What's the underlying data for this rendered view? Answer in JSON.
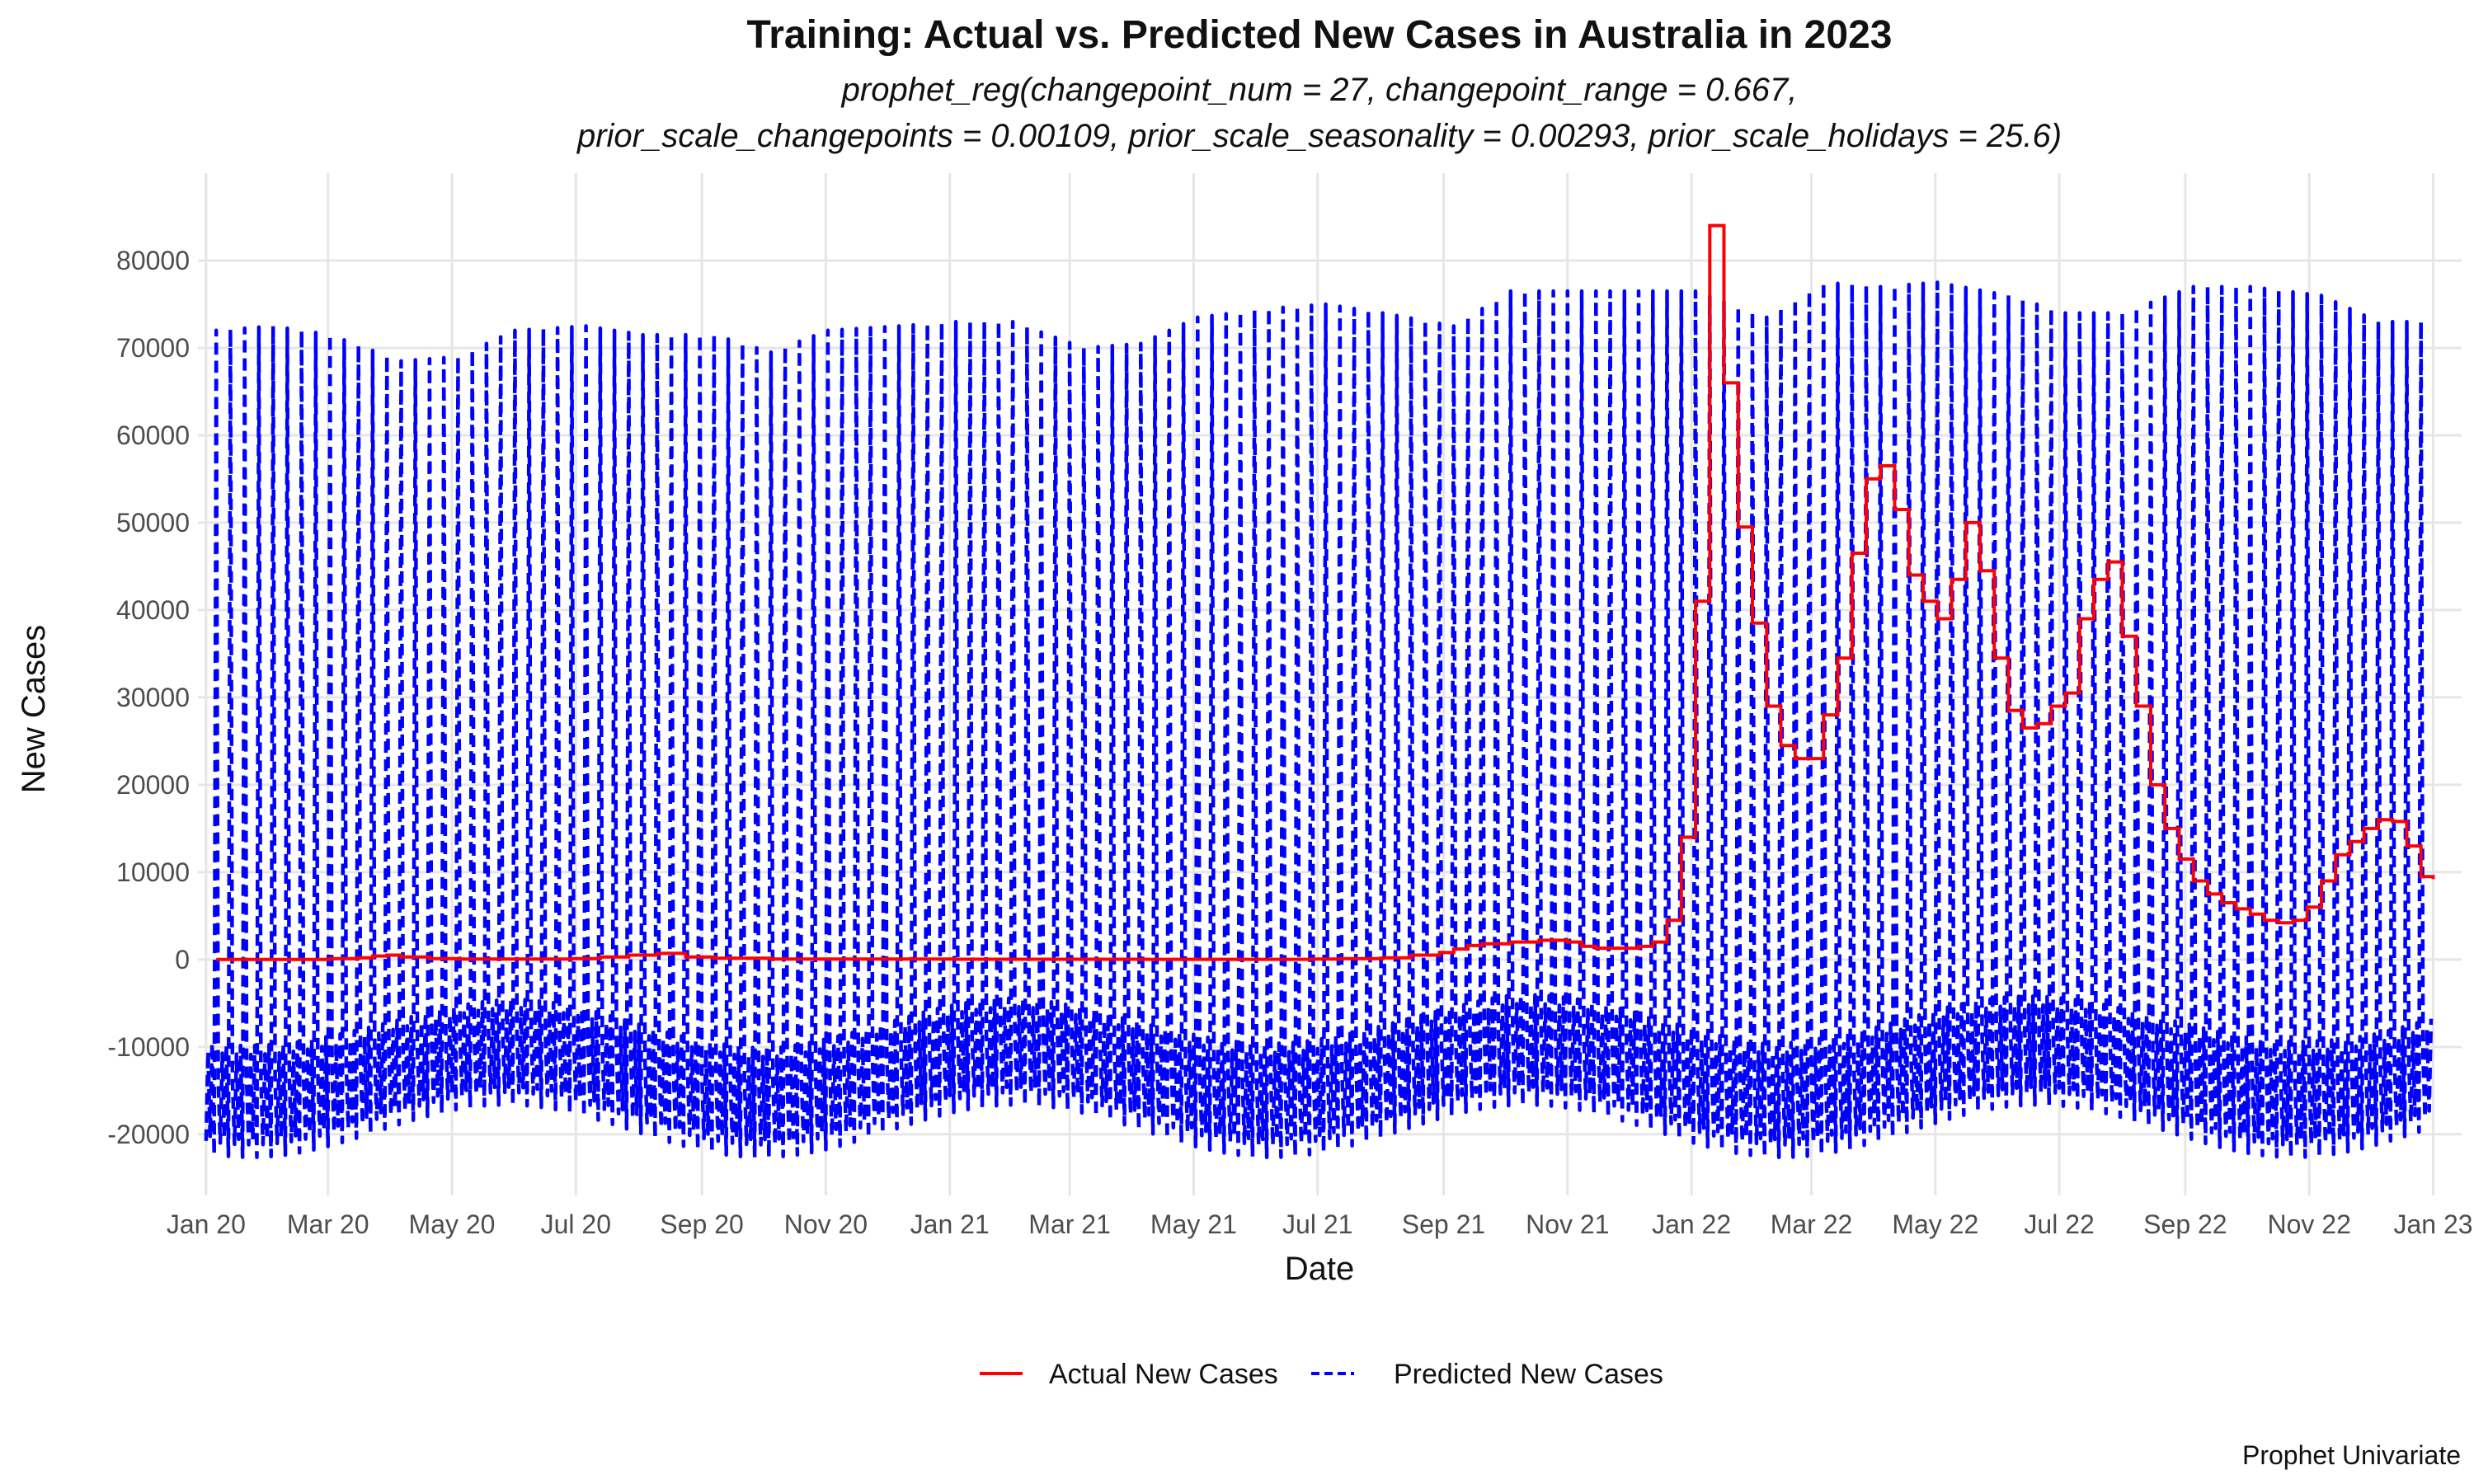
{
  "chart_data": {
    "type": "line",
    "title": "Training: Actual vs. Predicted New Cases in Australia in 2023",
    "subtitle_lines": [
      "prophet_reg(changepoint_num = 27, changepoint_range = 0.667,",
      "prior_scale_changepoints = 0.00109, prior_scale_seasonality = 0.00293, prior_scale_holidays = 25.6)"
    ],
    "xlabel": "Date",
    "ylabel": "New Cases",
    "caption": "Prophet Univariate",
    "xlim": [
      "2019-12-28",
      "2023-01-15"
    ],
    "ylim": [
      -27000,
      90000
    ],
    "x_ticks": [
      {
        "date": "2020-01-01",
        "label": "Jan 20"
      },
      {
        "date": "2020-03-01",
        "label": "Mar 20"
      },
      {
        "date": "2020-05-01",
        "label": "May 20"
      },
      {
        "date": "2020-07-01",
        "label": "Jul 20"
      },
      {
        "date": "2020-09-01",
        "label": "Sep 20"
      },
      {
        "date": "2020-11-01",
        "label": "Nov 20"
      },
      {
        "date": "2021-01-01",
        "label": "Jan 21"
      },
      {
        "date": "2021-03-01",
        "label": "Mar 21"
      },
      {
        "date": "2021-05-01",
        "label": "May 21"
      },
      {
        "date": "2021-07-01",
        "label": "Jul 21"
      },
      {
        "date": "2021-09-01",
        "label": "Sep 21"
      },
      {
        "date": "2021-11-01",
        "label": "Nov 21"
      },
      {
        "date": "2022-01-01",
        "label": "Jan 22"
      },
      {
        "date": "2022-03-01",
        "label": "Mar 22"
      },
      {
        "date": "2022-05-01",
        "label": "May 22"
      },
      {
        "date": "2022-07-01",
        "label": "Jul 22"
      },
      {
        "date": "2022-09-01",
        "label": "Sep 22"
      },
      {
        "date": "2022-11-01",
        "label": "Nov 22"
      },
      {
        "date": "2023-01-01",
        "label": "Jan 23"
      }
    ],
    "y_ticks": [
      -20000,
      -10000,
      0,
      10000,
      20000,
      30000,
      40000,
      50000,
      60000,
      70000,
      80000
    ],
    "y_tick_labels": [
      "-20000",
      "-10000",
      "0",
      "10000",
      "20000",
      "30000",
      "40000",
      "50000",
      "60000",
      "70000",
      "80000"
    ],
    "grid": true,
    "legend_position": "bottom",
    "series": [
      {
        "name": "Actual New Cases",
        "color": "#ff0000",
        "dash": "solid",
        "step": true,
        "points": [
          [
            "2020-01-06",
            0
          ],
          [
            "2020-02-03",
            0
          ],
          [
            "2020-03-02",
            100
          ],
          [
            "2020-03-16",
            200
          ],
          [
            "2020-03-23",
            400
          ],
          [
            "2020-03-30",
            500
          ],
          [
            "2020-04-06",
            300
          ],
          [
            "2020-04-20",
            100
          ],
          [
            "2020-05-04",
            50
          ],
          [
            "2020-06-01",
            50
          ],
          [
            "2020-06-29",
            100
          ],
          [
            "2020-07-13",
            300
          ],
          [
            "2020-07-27",
            500
          ],
          [
            "2020-08-10",
            700
          ],
          [
            "2020-08-24",
            300
          ],
          [
            "2020-09-07",
            150
          ],
          [
            "2020-10-05",
            50
          ],
          [
            "2021-01-04",
            30
          ],
          [
            "2021-04-05",
            20
          ],
          [
            "2021-06-28",
            50
          ],
          [
            "2021-07-12",
            100
          ],
          [
            "2021-08-02",
            200
          ],
          [
            "2021-08-16",
            500
          ],
          [
            "2021-08-30",
            800
          ],
          [
            "2021-09-06",
            1200
          ],
          [
            "2021-09-13",
            1600
          ],
          [
            "2021-09-20",
            1800
          ],
          [
            "2021-10-04",
            2000
          ],
          [
            "2021-10-18",
            2200
          ],
          [
            "2021-11-01",
            2000
          ],
          [
            "2021-11-08",
            1500
          ],
          [
            "2021-11-15",
            1300
          ],
          [
            "2021-12-06",
            1500
          ],
          [
            "2021-12-13",
            2000
          ],
          [
            "2021-12-20",
            4500
          ],
          [
            "2021-12-27",
            14000
          ],
          [
            "2022-01-03",
            41000
          ],
          [
            "2022-01-10",
            84000
          ],
          [
            "2022-01-17",
            66000
          ],
          [
            "2022-01-24",
            49500
          ],
          [
            "2022-01-31",
            38500
          ],
          [
            "2022-02-07",
            29000
          ],
          [
            "2022-02-14",
            24500
          ],
          [
            "2022-02-21",
            23000
          ],
          [
            "2022-03-07",
            28000
          ],
          [
            "2022-03-14",
            34500
          ],
          [
            "2022-03-21",
            46500
          ],
          [
            "2022-03-28",
            55000
          ],
          [
            "2022-04-04",
            56500
          ],
          [
            "2022-04-11",
            51500
          ],
          [
            "2022-04-18",
            44000
          ],
          [
            "2022-04-25",
            41000
          ],
          [
            "2022-05-02",
            39000
          ],
          [
            "2022-05-09",
            43500
          ],
          [
            "2022-05-16",
            50000
          ],
          [
            "2022-05-23",
            44500
          ],
          [
            "2022-05-30",
            34500
          ],
          [
            "2022-06-06",
            28500
          ],
          [
            "2022-06-13",
            26500
          ],
          [
            "2022-06-20",
            27000
          ],
          [
            "2022-06-27",
            29000
          ],
          [
            "2022-07-04",
            30500
          ],
          [
            "2022-07-11",
            39000
          ],
          [
            "2022-07-18",
            43500
          ],
          [
            "2022-07-25",
            45500
          ],
          [
            "2022-08-01",
            37000
          ],
          [
            "2022-08-08",
            29000
          ],
          [
            "2022-08-15",
            20000
          ],
          [
            "2022-08-22",
            15000
          ],
          [
            "2022-08-29",
            11500
          ],
          [
            "2022-09-05",
            9000
          ],
          [
            "2022-09-12",
            7500
          ],
          [
            "2022-09-19",
            6500
          ],
          [
            "2022-09-26",
            5800
          ],
          [
            "2022-10-03",
            5200
          ],
          [
            "2022-10-10",
            4500
          ],
          [
            "2022-10-17",
            4200
          ],
          [
            "2022-10-24",
            4500
          ],
          [
            "2022-10-31",
            6000
          ],
          [
            "2022-11-07",
            9000
          ],
          [
            "2022-11-14",
            12000
          ],
          [
            "2022-11-21",
            13500
          ],
          [
            "2022-11-28",
            15000
          ],
          [
            "2022-12-05",
            16000
          ],
          [
            "2022-12-12",
            15800
          ],
          [
            "2022-12-19",
            13000
          ],
          [
            "2022-12-26",
            9500
          ],
          [
            "2023-01-01",
            9200
          ]
        ]
      },
      {
        "name": "Predicted New Cases",
        "color": "#0000ff",
        "dash": "dashed",
        "start": "2020-01-01",
        "end": "2022-12-31",
        "pattern": "weekly seasonality: one high spike per week, troughs near -13000 to -21000",
        "weekly_spike_peaks": [
          {
            "date": "2020-01-06",
            "value": 72000
          },
          {
            "date": "2020-02-03",
            "value": 72500
          },
          {
            "date": "2020-03-02",
            "value": 71500
          },
          {
            "date": "2020-04-06",
            "value": 68500
          },
          {
            "date": "2020-05-04",
            "value": 69000
          },
          {
            "date": "2020-06-01",
            "value": 72000
          },
          {
            "date": "2020-07-06",
            "value": 72500
          },
          {
            "date": "2020-08-03",
            "value": 71500
          },
          {
            "date": "2020-09-07",
            "value": 71500
          },
          {
            "date": "2020-10-05",
            "value": 69500
          },
          {
            "date": "2020-11-02",
            "value": 72000
          },
          {
            "date": "2020-12-07",
            "value": 72500
          },
          {
            "date": "2021-01-04",
            "value": 73000
          },
          {
            "date": "2021-02-01",
            "value": 73000
          },
          {
            "date": "2021-03-08",
            "value": 70000
          },
          {
            "date": "2021-04-05",
            "value": 70500
          },
          {
            "date": "2021-05-03",
            "value": 73500
          },
          {
            "date": "2021-06-07",
            "value": 74500
          },
          {
            "date": "2021-07-05",
            "value": 75000
          },
          {
            "date": "2021-08-02",
            "value": 74000
          },
          {
            "date": "2021-09-06",
            "value": 72500
          },
          {
            "date": "2021-10-04",
            "value": 76500
          },
          {
            "date": "2021-11-01",
            "value": 76500
          },
          {
            "date": "2021-12-06",
            "value": 76500
          },
          {
            "date": "2022-01-03",
            "value": 76500
          },
          {
            "date": "2022-02-07",
            "value": 73500
          },
          {
            "date": "2022-03-07",
            "value": 77500
          },
          {
            "date": "2022-04-04",
            "value": 77000
          },
          {
            "date": "2022-05-02",
            "value": 77500
          },
          {
            "date": "2022-06-06",
            "value": 76000
          },
          {
            "date": "2022-07-04",
            "value": 74000
          },
          {
            "date": "2022-08-01",
            "value": 74000
          },
          {
            "date": "2022-09-05",
            "value": 77000
          },
          {
            "date": "2022-10-03",
            "value": 77000
          },
          {
            "date": "2022-11-07",
            "value": 76000
          },
          {
            "date": "2022-12-05",
            "value": 73000
          },
          {
            "date": "2022-12-31",
            "value": 73000
          }
        ]
      }
    ]
  }
}
